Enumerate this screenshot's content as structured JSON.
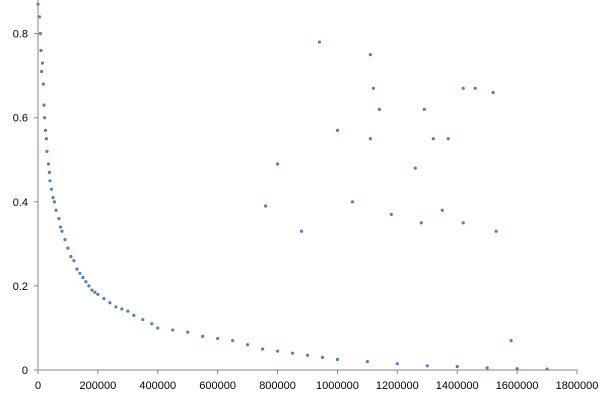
{
  "chart_data": {
    "type": "scatter",
    "title": "",
    "xlabel": "",
    "ylabel": "",
    "xlim": [
      0,
      1800000
    ],
    "ylim": [
      0,
      0.88
    ],
    "x_ticks": [
      0,
      200000,
      400000,
      600000,
      800000,
      1000000,
      1200000,
      1400000,
      1600000,
      1800000
    ],
    "x_tick_labels": [
      "0",
      "200000",
      "400000",
      "600000",
      "800000",
      "1000000",
      "1200000",
      "1400000",
      "1600000",
      "1800000"
    ],
    "y_ticks": [
      0,
      0.2,
      0.4,
      0.6,
      0.8
    ],
    "y_tick_labels": [
      "0",
      "0.2",
      "0.4",
      "0.6",
      "0.8"
    ],
    "grid": false,
    "legend": "none",
    "marker_color": "#4F81BD",
    "axis_color": "#868686",
    "series": [
      {
        "points": [
          [
            0,
            0.87
          ],
          [
            5000,
            0.84
          ],
          [
            8000,
            0.8
          ],
          [
            10000,
            0.76
          ],
          [
            12000,
            0.71
          ],
          [
            15000,
            0.73
          ],
          [
            18000,
            0.68
          ],
          [
            20000,
            0.63
          ],
          [
            22000,
            0.6
          ],
          [
            25000,
            0.57
          ],
          [
            28000,
            0.55
          ],
          [
            30000,
            0.52
          ],
          [
            35000,
            0.49
          ],
          [
            38000,
            0.47
          ],
          [
            40000,
            0.45
          ],
          [
            45000,
            0.43
          ],
          [
            50000,
            0.41
          ],
          [
            55000,
            0.4
          ],
          [
            60000,
            0.38
          ],
          [
            70000,
            0.36
          ],
          [
            75000,
            0.34
          ],
          [
            80000,
            0.33
          ],
          [
            90000,
            0.31
          ],
          [
            100000,
            0.29
          ],
          [
            110000,
            0.27
          ],
          [
            120000,
            0.26
          ],
          [
            130000,
            0.24
          ],
          [
            140000,
            0.23
          ],
          [
            150000,
            0.22
          ],
          [
            160000,
            0.21
          ],
          [
            170000,
            0.2
          ],
          [
            180000,
            0.19
          ],
          [
            190000,
            0.185
          ],
          [
            200000,
            0.18
          ],
          [
            220000,
            0.17
          ],
          [
            240000,
            0.16
          ],
          [
            260000,
            0.15
          ],
          [
            280000,
            0.145
          ],
          [
            300000,
            0.14
          ],
          [
            320000,
            0.13
          ],
          [
            350000,
            0.12
          ],
          [
            380000,
            0.11
          ],
          [
            400000,
            0.1
          ],
          [
            450000,
            0.095
          ],
          [
            500000,
            0.09
          ],
          [
            550000,
            0.08
          ],
          [
            600000,
            0.075
          ],
          [
            650000,
            0.07
          ],
          [
            700000,
            0.06
          ],
          [
            750000,
            0.05
          ],
          [
            800000,
            0.045
          ],
          [
            850000,
            0.04
          ],
          [
            900000,
            0.035
          ],
          [
            950000,
            0.03
          ],
          [
            1000000,
            0.025
          ],
          [
            1100000,
            0.02
          ],
          [
            1200000,
            0.015
          ],
          [
            1300000,
            0.01
          ],
          [
            1400000,
            0.008
          ],
          [
            1500000,
            0.005
          ],
          [
            1600000,
            0.003
          ],
          [
            1700000,
            0.002
          ],
          [
            940000,
            0.78
          ],
          [
            1000000,
            0.57
          ],
          [
            1110000,
            0.75
          ],
          [
            1120000,
            0.67
          ],
          [
            1140000,
            0.62
          ],
          [
            1110000,
            0.55
          ],
          [
            1290000,
            0.62
          ],
          [
            1320000,
            0.55
          ],
          [
            1370000,
            0.55
          ],
          [
            1420000,
            0.67
          ],
          [
            1460000,
            0.67
          ],
          [
            1520000,
            0.66
          ],
          [
            800000,
            0.49
          ],
          [
            1260000,
            0.48
          ],
          [
            760000,
            0.39
          ],
          [
            880000,
            0.33
          ],
          [
            1050000,
            0.4
          ],
          [
            1180000,
            0.37
          ],
          [
            1280000,
            0.35
          ],
          [
            1350000,
            0.38
          ],
          [
            1420000,
            0.35
          ],
          [
            1530000,
            0.33
          ],
          [
            1580000,
            0.07
          ]
        ]
      }
    ]
  }
}
